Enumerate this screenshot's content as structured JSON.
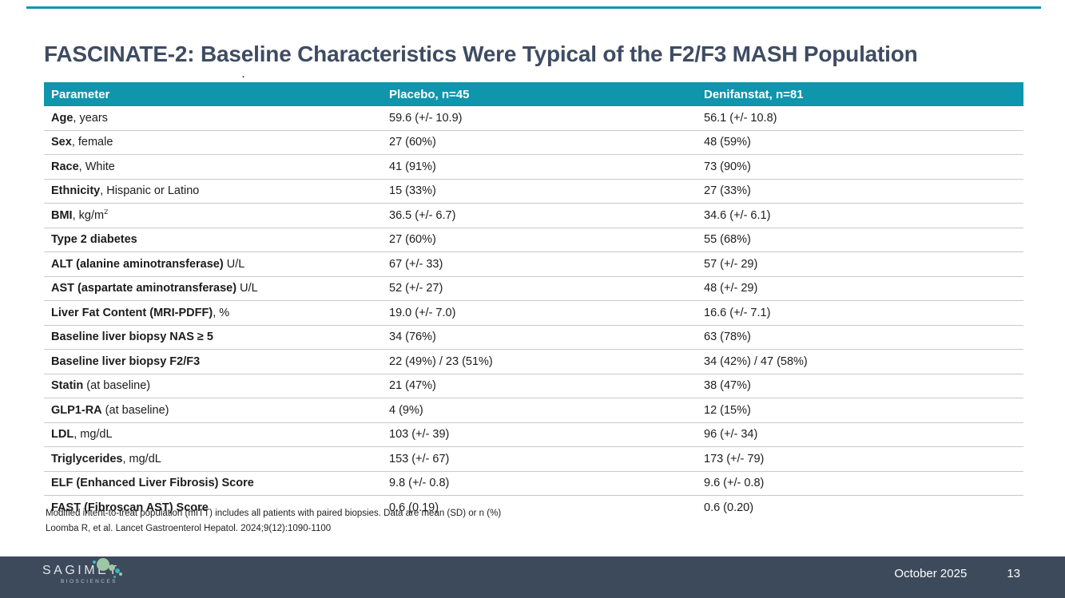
{
  "slide": {
    "title": "FASCINATE-2: Baseline Characteristics Were Typical of the F2/F3 MASH Population",
    "stray_dot": "."
  },
  "table": {
    "headers": [
      "Parameter",
      "Placebo, n=45",
      "Denifanstat, n=81"
    ],
    "rows": [
      {
        "label_bold": "Age",
        "label_rest": ", years",
        "label_sup": "",
        "placebo": "59.6 (+/- 10.9)",
        "denifanstat": "56.1 (+/- 10.8)"
      },
      {
        "label_bold": "Sex",
        "label_rest": ", female",
        "label_sup": "",
        "placebo": "27 (60%)",
        "denifanstat": "48 (59%)"
      },
      {
        "label_bold": "Race",
        "label_rest": ", White",
        "label_sup": "",
        "placebo": "41 (91%)",
        "denifanstat": "73 (90%)"
      },
      {
        "label_bold": "Ethnicity",
        "label_rest": ", Hispanic or Latino",
        "label_sup": "",
        "placebo": "15 (33%)",
        "denifanstat": "27 (33%)"
      },
      {
        "label_bold": "BMI",
        "label_rest": ", kg/m",
        "label_sup": "2",
        "placebo": "36.5 (+/- 6.7)",
        "denifanstat": "34.6 (+/- 6.1)"
      },
      {
        "label_bold": "Type 2 diabetes",
        "label_rest": "",
        "label_sup": "",
        "placebo": "27 (60%)",
        "denifanstat": "55 (68%)"
      },
      {
        "label_bold": "ALT (alanine aminotransferase)",
        "label_rest": " U/L",
        "label_sup": "",
        "placebo": "67 (+/- 33)",
        "denifanstat": "57 (+/- 29)"
      },
      {
        "label_bold": "AST (aspartate aminotransferase)",
        "label_rest": " U/L",
        "label_sup": "",
        "placebo": "52 (+/- 27)",
        "denifanstat": "48 (+/- 29)"
      },
      {
        "label_bold": "Liver Fat Content (MRI-PDFF)",
        "label_rest": ", %",
        "label_sup": "",
        "placebo": "19.0 (+/- 7.0)",
        "denifanstat": "16.6 (+/- 7.1)"
      },
      {
        "label_bold": "Baseline liver biopsy NAS ≥ 5",
        "label_rest": "",
        "label_sup": "",
        "placebo": "34 (76%)",
        "denifanstat": "63 (78%)"
      },
      {
        "label_bold": "Baseline liver biopsy F2/F3",
        "label_rest": "",
        "label_sup": "",
        "placebo": "22 (49%) / 23 (51%)",
        "denifanstat": "34 (42%) / 47 (58%)"
      },
      {
        "label_bold": "Statin",
        "label_rest": " (at baseline)",
        "label_sup": "",
        "placebo": "21 (47%)",
        "denifanstat": "38 (47%)"
      },
      {
        "label_bold": "GLP1-RA",
        "label_rest": " (at baseline)",
        "label_sup": "",
        "placebo": "4 (9%)",
        "denifanstat": "12 (15%)"
      },
      {
        "label_bold": "LDL",
        "label_rest": ", mg/dL",
        "label_sup": "",
        "placebo": "103 (+/- 39)",
        "denifanstat": "96 (+/- 34)"
      },
      {
        "label_bold": "Triglycerides",
        "label_rest": ", mg/dL",
        "label_sup": "",
        "placebo": "153 (+/- 67)",
        "denifanstat": "173 (+/- 79)"
      },
      {
        "label_bold": "ELF (Enhanced Liver Fibrosis) Score",
        "label_rest": "",
        "label_sup": "",
        "placebo": "9.8 (+/- 0.8)",
        "denifanstat": "9.6 (+/- 0.8)"
      },
      {
        "label_bold": "FAST (Fibroscan AST) Score",
        "label_rest": "",
        "label_sup": "",
        "placebo": "0.6 (0.19)",
        "denifanstat": "0.6 (0.20)"
      }
    ]
  },
  "footnotes": {
    "line1": "Modified intent-to-treat population (mITT) includes all patients with paired biopsies. Data are mean (SD) or n (%)",
    "line2": "Loomba R, et al. Lancet Gastroenterol Hepatol. 2024;9(12):1090-1100"
  },
  "footer": {
    "logo_name": "SAGIMET",
    "logo_sub": "BIOSCIENCES",
    "date": "October 2025",
    "page": "13"
  },
  "colors": {
    "accent_teal": "#0f95ac",
    "title_text": "#3e4c63",
    "footer_bg": "#3d4a5c",
    "logo_sage": "#9cc7a5",
    "logo_teal": "#3ab3c3"
  }
}
